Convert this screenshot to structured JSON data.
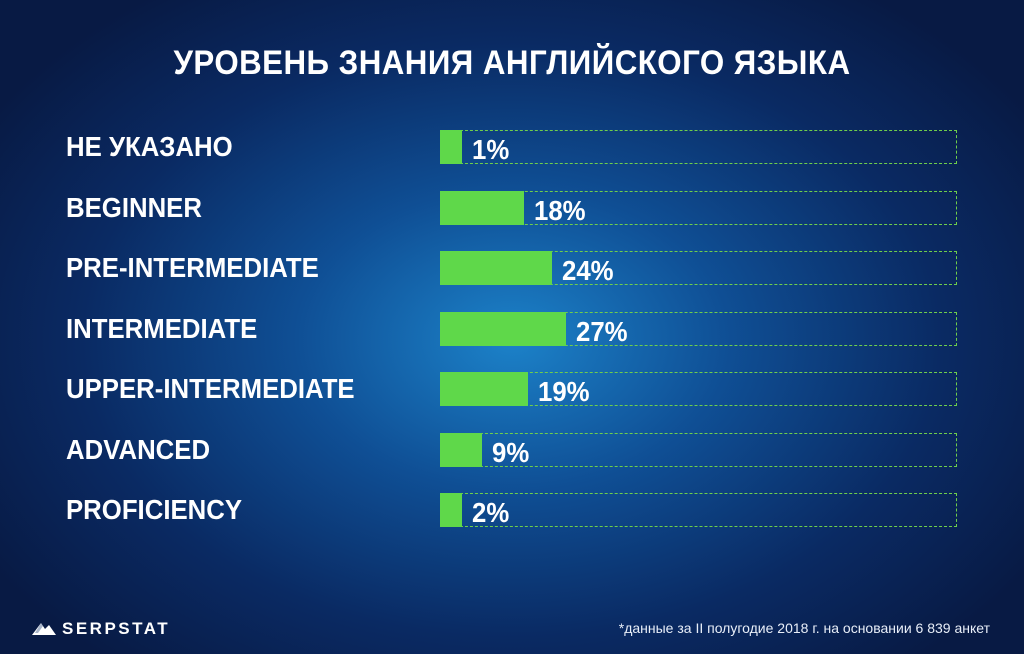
{
  "chart_data": {
    "type": "bar",
    "orientation": "horizontal",
    "title": "УРОВЕНЬ ЗНАНИЯ АНГЛИЙСКОГО ЯЗЫКА",
    "categories": [
      "НЕ УКАЗАНО",
      "BEGINNER",
      "PRE-INTERMEDIATE",
      "INTERMEDIATE",
      "UPPER-INTERMEDIATE",
      "ADVANCED",
      "PROFICIENCY"
    ],
    "values": [
      1,
      18,
      24,
      27,
      19,
      9,
      2
    ],
    "value_labels": [
      "1%",
      "18%",
      "24%",
      "27%",
      "19%",
      "9%",
      "2%"
    ],
    "unit": "%",
    "xlim": [
      0,
      100
    ],
    "bar_color": "#5fd84a",
    "track_color": "#6fcf4b",
    "grid": false,
    "legend": "none"
  },
  "brand": {
    "name": "SERPSTAT",
    "icon": "serpstat-logo-icon"
  },
  "footnote": "*данные за II полугодие 2018 г. на основании 6 839 анкет",
  "colors": {
    "background_center": "#1c82c9",
    "background_edge": "#081a44",
    "text": "#ffffff"
  }
}
